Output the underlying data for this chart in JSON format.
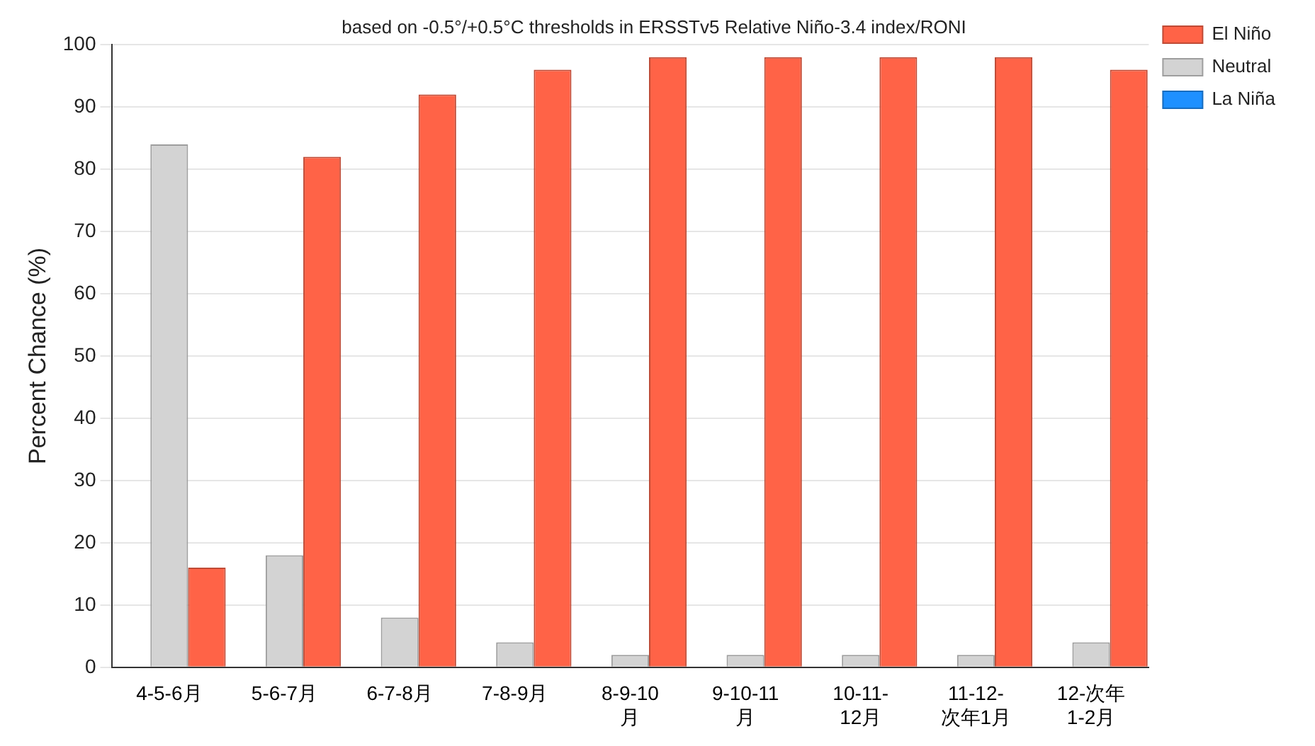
{
  "chart_data": {
    "type": "bar",
    "title": "based on -0.5°/+0.5°C thresholds in ERSSTv5 Relative Niño-3.4 index/RONI",
    "ylabel": "Percent Chance (%)",
    "categories": [
      "4-5-6月",
      "5-6-7月",
      "6-7-8月",
      "7-8-9月",
      "8-9-10月",
      "9-10-11月",
      "10-11-12月",
      "11-12-次年1月",
      "12-次年1-2月"
    ],
    "series": [
      {
        "name": "La Niña",
        "color": "#1e90ff",
        "values": [
          0,
          0,
          0,
          0,
          0,
          0,
          0,
          0,
          0
        ]
      },
      {
        "name": "Neutral",
        "color": "#d3d3d3",
        "values": [
          84,
          18,
          8,
          4,
          2,
          2,
          2,
          2,
          4
        ]
      },
      {
        "name": "El Niño",
        "color": "#ff6347",
        "values": [
          16,
          82,
          92,
          96,
          98,
          98,
          98,
          98,
          96
        ]
      }
    ],
    "ylim": [
      0,
      100
    ],
    "yticks": [
      0,
      10,
      20,
      30,
      40,
      50,
      60,
      70,
      80,
      90,
      100
    ],
    "grid": "y",
    "legend": "top right"
  }
}
